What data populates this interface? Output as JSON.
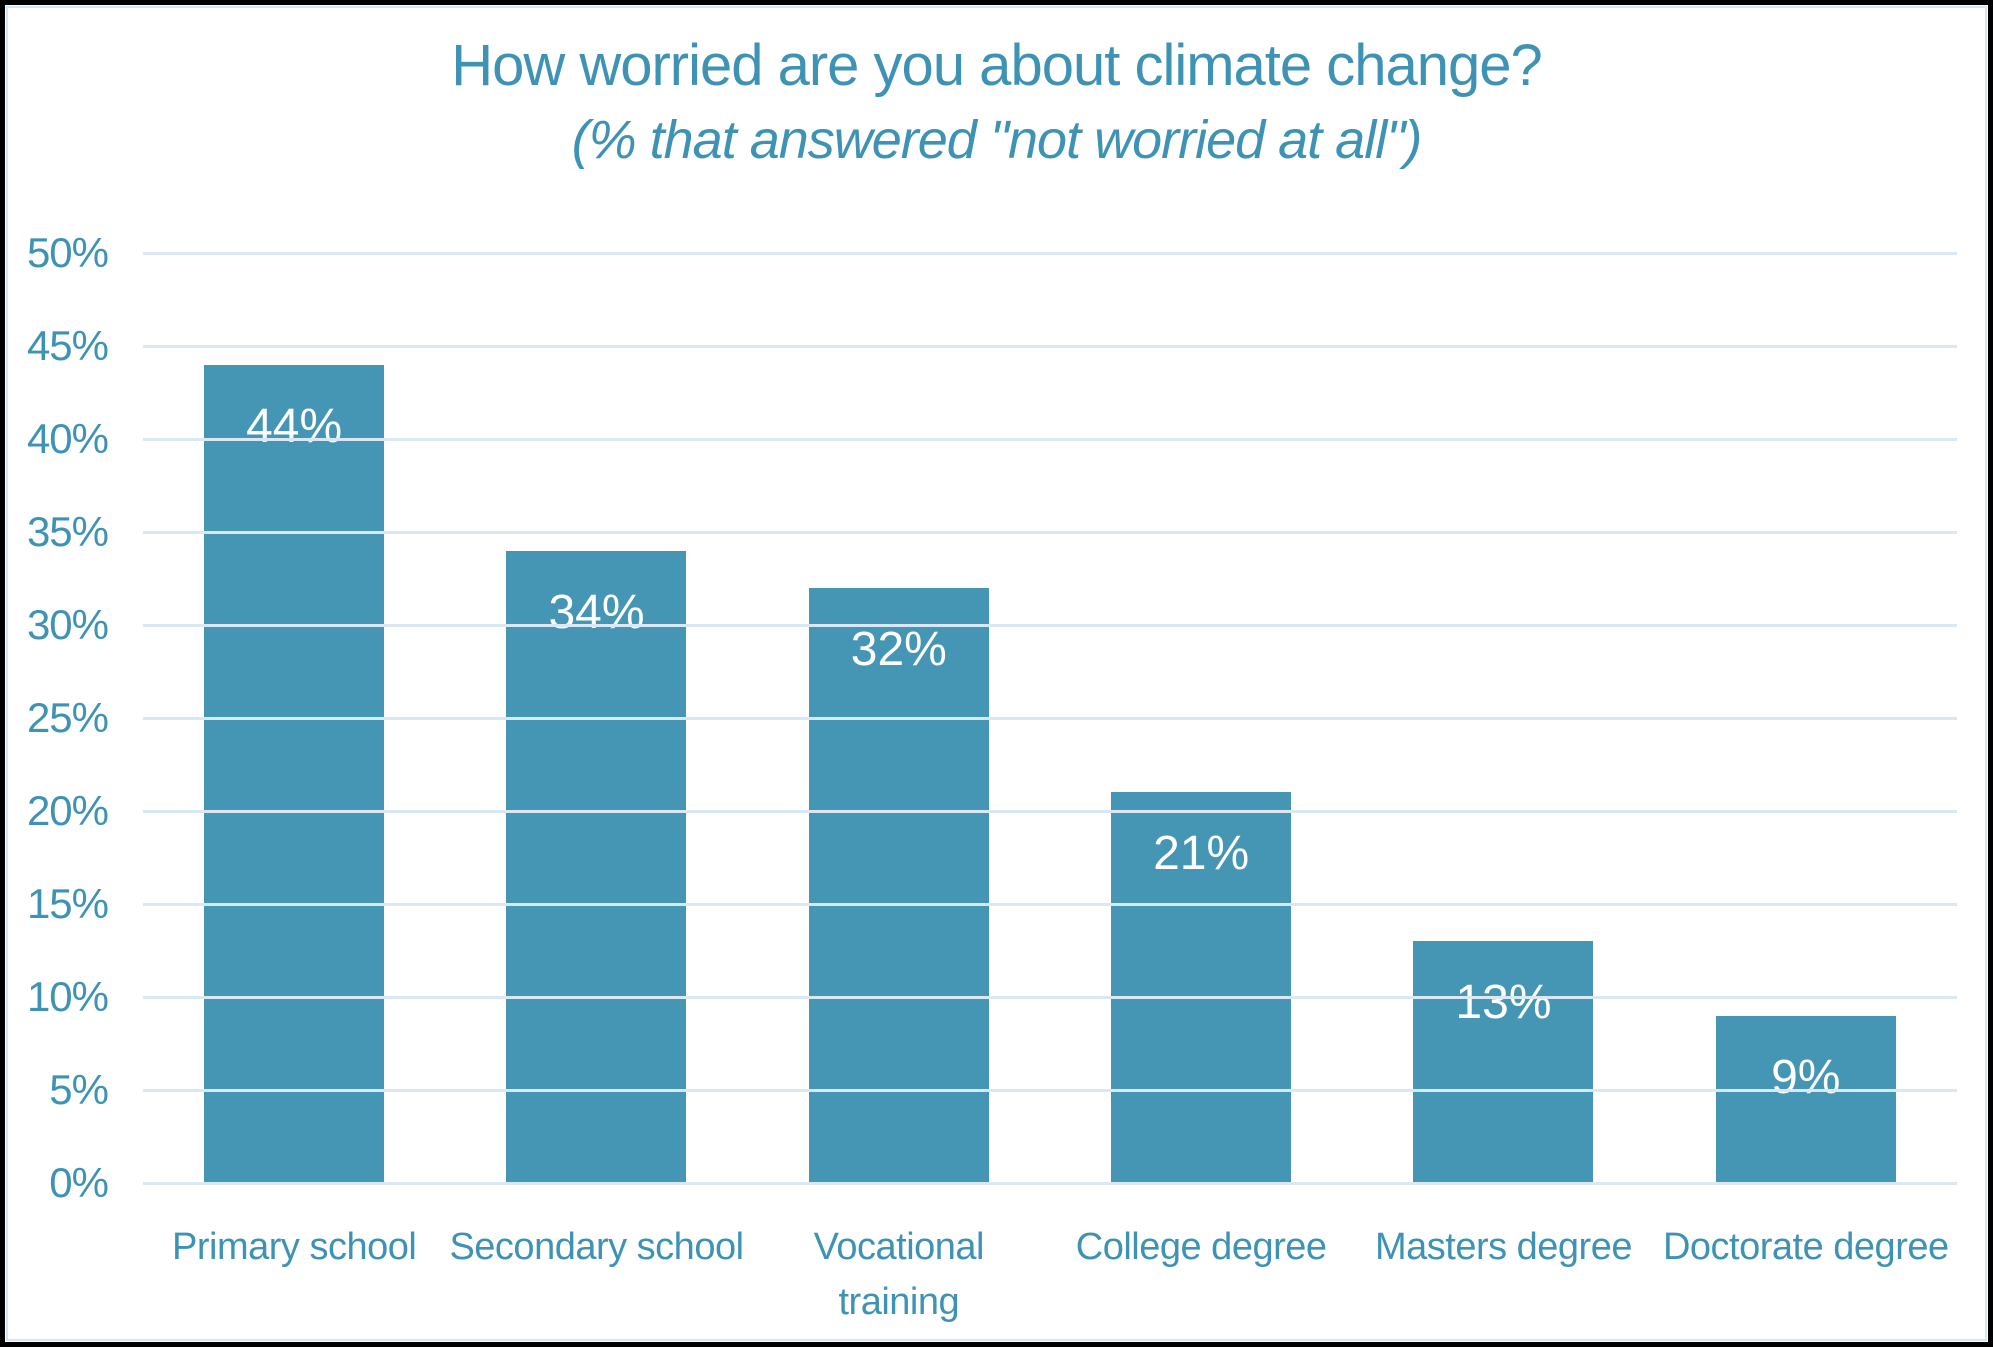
{
  "header": {
    "title": "How worried are you about climate change?",
    "subtitle": "(% that answered \"not worried at all\")"
  },
  "chart_data": {
    "type": "bar",
    "title": "How worried are you about climate change?",
    "subtitle": "(% that answered \"not worried at all\")",
    "categories": [
      "Primary school",
      "Secondary school",
      "Vocational training",
      "College degree",
      "Masters degree",
      "Doctorate degree"
    ],
    "values": [
      44,
      34,
      32,
      21,
      13,
      9
    ],
    "data_labels": [
      "44%",
      "34%",
      "32%",
      "21%",
      "13%",
      "9%"
    ],
    "xlabel": "",
    "ylabel": "",
    "ylim": [
      0,
      50
    ],
    "ytick_step": 5,
    "ytick_labels": [
      "0%",
      "5%",
      "10%",
      "15%",
      "20%",
      "25%",
      "30%",
      "35%",
      "40%",
      "45%",
      "50%"
    ],
    "grid": "horizontal gridlines on",
    "legend": "none",
    "colors": {
      "bar": "#4496b4",
      "bar_value_label": "#ffffff",
      "axis_text": "#3e93b5",
      "title_text": "#3e93b5",
      "gridline": "#d9e8f2",
      "outer_border": "#000000",
      "inner_border": "#d5e7f3",
      "background": "#ffffff"
    }
  }
}
